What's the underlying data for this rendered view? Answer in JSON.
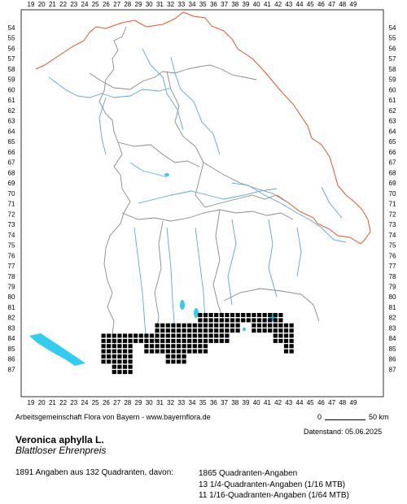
{
  "map": {
    "x_labels": [
      "19",
      "20",
      "21",
      "22",
      "23",
      "24",
      "25",
      "26",
      "27",
      "28",
      "29",
      "30",
      "31",
      "32",
      "33",
      "34",
      "35",
      "36",
      "37",
      "38",
      "39",
      "40",
      "41",
      "42",
      "43",
      "44",
      "45",
      "46",
      "47",
      "48",
      "49"
    ],
    "y_labels": [
      "54",
      "55",
      "56",
      "57",
      "58",
      "59",
      "60",
      "61",
      "62",
      "63",
      "64",
      "65",
      "66",
      "67",
      "68",
      "69",
      "70",
      "71",
      "72",
      "73",
      "74",
      "75",
      "76",
      "77",
      "78",
      "79",
      "80",
      "81",
      "82",
      "83",
      "84",
      "85",
      "86",
      "87"
    ],
    "colors": {
      "border": "#e8542a",
      "districts": "#8a8a8a",
      "rivers": "#5aa8dc",
      "lakes": "#33ccee",
      "dots": "#000000"
    },
    "occurrences": [
      [
        26,
        84
      ],
      [
        26,
        85
      ],
      [
        26,
        86
      ],
      [
        27,
        84
      ],
      [
        27,
        85
      ],
      [
        27,
        86
      ],
      [
        27,
        87
      ],
      [
        28,
        84
      ],
      [
        28,
        85
      ],
      [
        28,
        86
      ],
      [
        28,
        87
      ],
      [
        29,
        84
      ],
      [
        30,
        84
      ],
      [
        30,
        85
      ],
      [
        31,
        83
      ],
      [
        31,
        84
      ],
      [
        31,
        85
      ],
      [
        32,
        83
      ],
      [
        32,
        84
      ],
      [
        32,
        85
      ],
      [
        32,
        86
      ],
      [
        33,
        83
      ],
      [
        33,
        84
      ],
      [
        33,
        85
      ],
      [
        33,
        86
      ],
      [
        34,
        83
      ],
      [
        34,
        84
      ],
      [
        34,
        85
      ],
      [
        35,
        82
      ],
      [
        35,
        83
      ],
      [
        35,
        84
      ],
      [
        35,
        85
      ],
      [
        36,
        82
      ],
      [
        36,
        83
      ],
      [
        36,
        84
      ],
      [
        37,
        82
      ],
      [
        37,
        83
      ],
      [
        37,
        84
      ],
      [
        38,
        82
      ],
      [
        38,
        83
      ],
      [
        39,
        82
      ],
      [
        40,
        82
      ],
      [
        40,
        83
      ],
      [
        41,
        82
      ],
      [
        41,
        83
      ],
      [
        42,
        82
      ],
      [
        42,
        83
      ],
      [
        42,
        84
      ],
      [
        43,
        83
      ],
      [
        43,
        84
      ],
      [
        43,
        85
      ]
    ]
  },
  "credit": "Arbeitsgemeinschaft Flora von Bayern - www.bayernflora.de",
  "scale": {
    "zero": "0",
    "end": "50 km"
  },
  "date": "Datenstand: 05.06.2025",
  "species": "Veronica aphylla L.",
  "common_name": "Blattloser Ehrenpreis",
  "summary": "1891 Angaben aus 132 Quadranten, davon:",
  "counts": [
    "1865 Quadranten-Angaben",
    "13 1/4-Quadranten-Angaben (1/16 MTB)",
    "11 1/16-Quadranten-Angaben (1/64 MTB)"
  ]
}
